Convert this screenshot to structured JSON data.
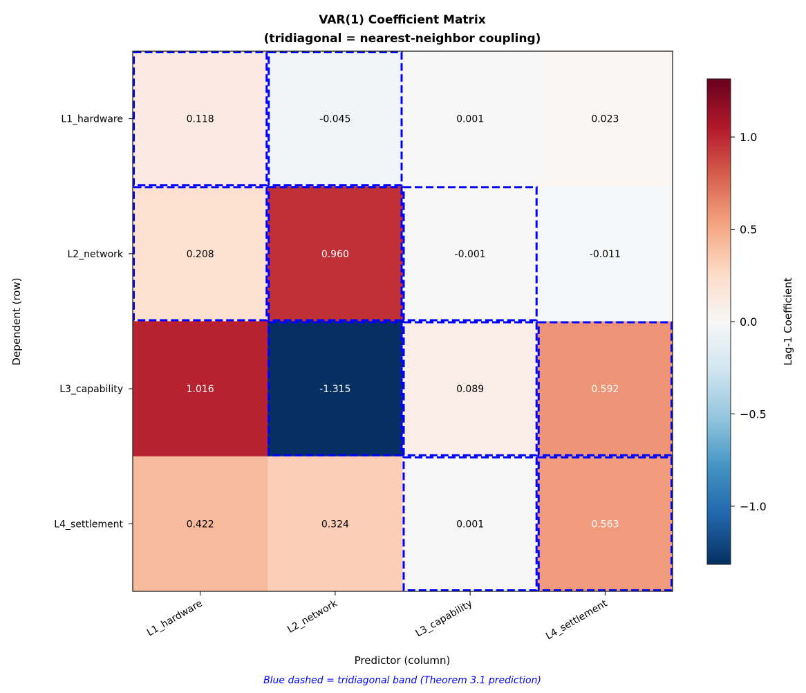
{
  "chart_data": {
    "type": "heatmap",
    "title": "VAR(1) Coefficient Matrix",
    "subtitle": "(tridiagonal = nearest-neighbor coupling)",
    "xlabel": "Predictor (column)",
    "ylabel": "Dependent (row)",
    "rows": [
      "L1_hardware",
      "L2_network",
      "L3_capability",
      "L4_settlement"
    ],
    "columns": [
      "L1_hardware",
      "L2_network",
      "L3_capability",
      "L4_settlement"
    ],
    "values": [
      [
        0.118,
        -0.045,
        0.001,
        0.023
      ],
      [
        0.208,
        0.96,
        -0.001,
        -0.011
      ],
      [
        1.016,
        -1.315,
        0.089,
        0.592
      ],
      [
        0.422,
        0.324,
        0.001,
        0.563
      ]
    ],
    "value_labels": [
      [
        "0.118",
        "-0.045",
        "0.001",
        "0.023"
      ],
      [
        "0.208",
        "0.960",
        "-0.001",
        "-0.011"
      ],
      [
        "1.016",
        "-1.315",
        "0.089",
        "0.592"
      ],
      [
        "0.422",
        "0.324",
        "0.001",
        "0.563"
      ]
    ],
    "colormap": "RdBu_r",
    "vlim": [
      -1.315,
      1.315
    ],
    "colorbar": {
      "label": "Lag-1 Coefficient",
      "ticks": [
        1.0,
        0.5,
        0.0,
        -0.5,
        -1.0
      ],
      "tick_labels": [
        "1.0",
        "0.5",
        "0.0",
        "−0.5",
        "−1.0"
      ]
    },
    "highlight": {
      "band": "tridiagonal",
      "color": "#0000ff",
      "style": "dashed"
    },
    "annotation": "Blue dashed = tridiagonal band (Theorem 3.1 prediction)",
    "annotation_color": "#0000ff"
  }
}
